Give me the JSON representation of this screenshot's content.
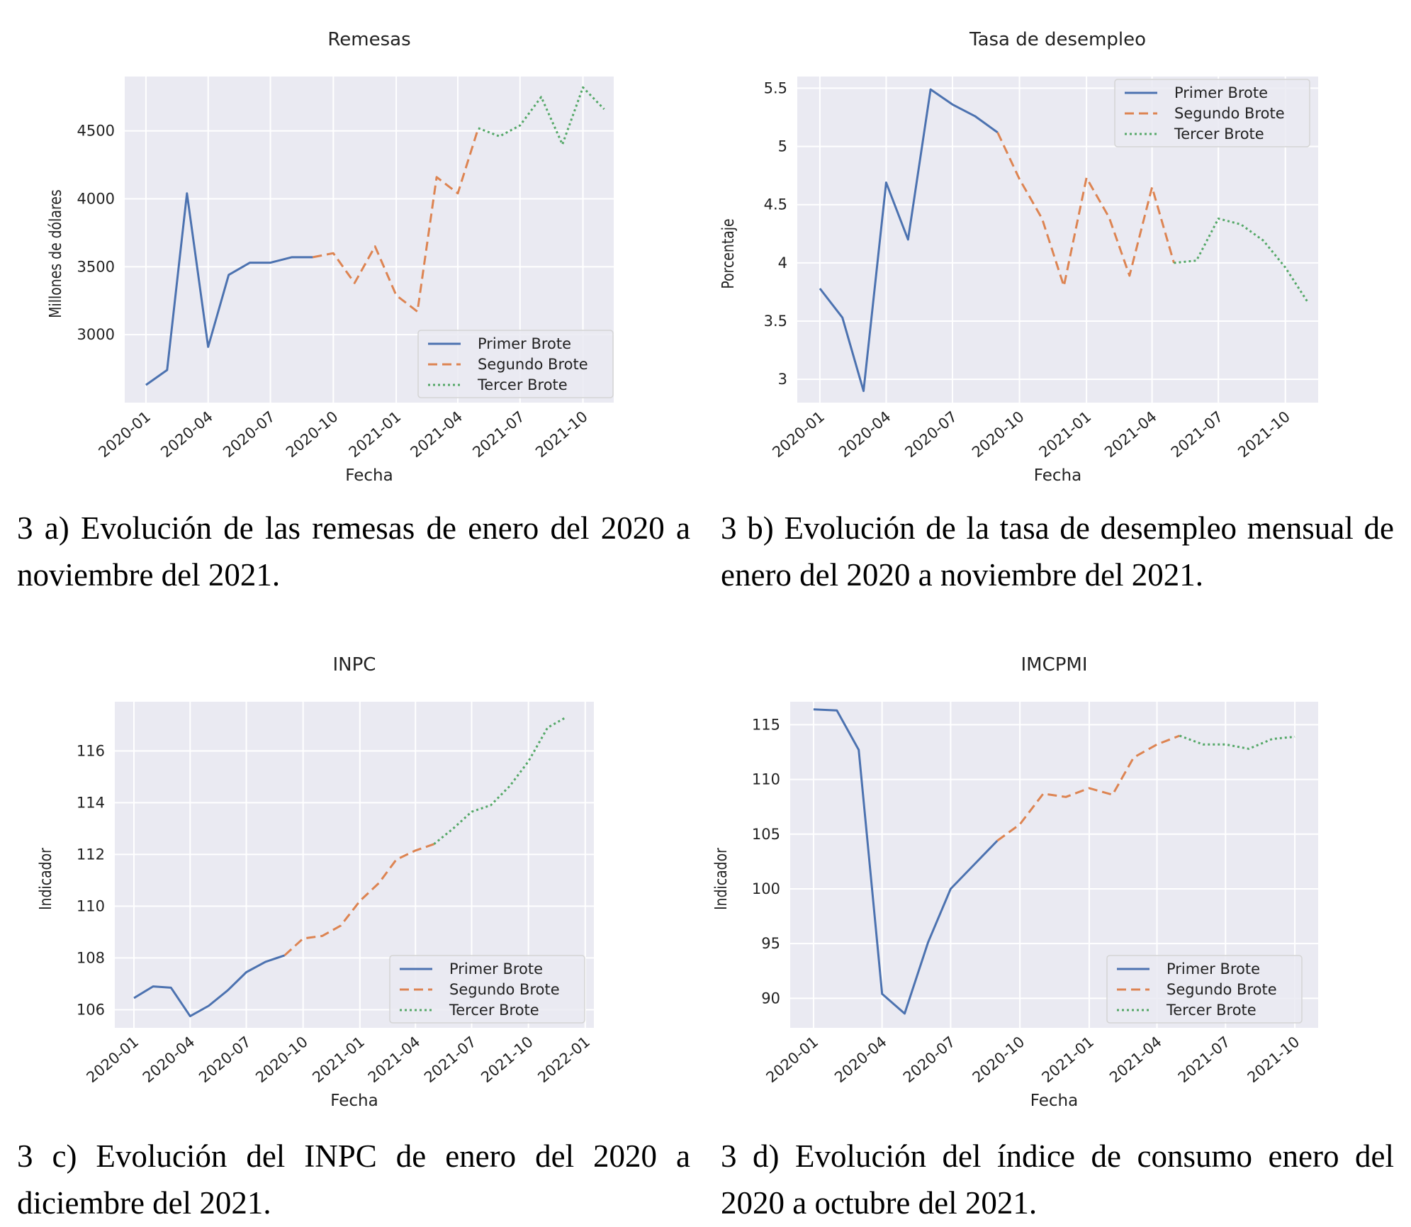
{
  "chart_data": [
    {
      "id": "remesas",
      "type": "line",
      "title": "Remesas",
      "xlabel": "Fecha",
      "ylabel": "Millones de dólares",
      "x_ticks": [
        "2020-01",
        "2020-04",
        "2020-07",
        "2020-10",
        "2021-01",
        "2021-04",
        "2021-07",
        "2021-10"
      ],
      "y_ticks": [
        3000,
        3500,
        4000,
        4500
      ],
      "ylim": [
        2500,
        4900
      ],
      "xlim": [
        "2019-12-01",
        "2021-11-15"
      ],
      "grid": true,
      "legend": "lower-right",
      "series": [
        {
          "name": "Primer Brote",
          "style": "solid",
          "color": "#4c72b0",
          "x": [
            "2020-01",
            "2020-02",
            "2020-03",
            "2020-04",
            "2020-05",
            "2020-06",
            "2020-07",
            "2020-08",
            "2020-09"
          ],
          "values": [
            2630,
            2740,
            4040,
            2910,
            3440,
            3530,
            3530,
            3570,
            3570
          ]
        },
        {
          "name": "Segundo Brote",
          "style": "dashed",
          "color": "#dd8452",
          "x": [
            "2020-09",
            "2020-10",
            "2020-11",
            "2020-12",
            "2021-01",
            "2021-02",
            "2021-03",
            "2021-04",
            "2021-05"
          ],
          "values": [
            3570,
            3600,
            3380,
            3650,
            3290,
            3170,
            4160,
            4040,
            4520
          ]
        },
        {
          "name": "Tercer Brote",
          "style": "dotted",
          "color": "#55a868",
          "x": [
            "2021-05",
            "2021-06",
            "2021-07",
            "2021-08",
            "2021-09",
            "2021-10",
            "2021-11"
          ],
          "values": [
            4520,
            4460,
            4540,
            4750,
            4400,
            4820,
            4660
          ]
        }
      ]
    },
    {
      "id": "desempleo",
      "type": "line",
      "title": "Tasa de desempleo",
      "xlabel": "Fecha",
      "ylabel": "Porcentaje",
      "x_ticks": [
        "2020-01",
        "2020-04",
        "2020-07",
        "2020-10",
        "2021-01",
        "2021-04",
        "2021-07",
        "2021-10"
      ],
      "y_ticks": [
        3.0,
        3.5,
        4.0,
        4.5,
        5.0,
        5.5
      ],
      "ylim": [
        2.8,
        5.6
      ],
      "xlim": [
        "2019-12-01",
        "2021-11-15"
      ],
      "grid": true,
      "legend": "top-right",
      "series": [
        {
          "name": "Primer Brote",
          "style": "solid",
          "color": "#4c72b0",
          "x": [
            "2020-01",
            "2020-02",
            "2020-03",
            "2020-04",
            "2020-05",
            "2020-06",
            "2020-07",
            "2020-08",
            "2020-09"
          ],
          "values": [
            3.78,
            3.53,
            2.9,
            4.69,
            4.2,
            5.49,
            5.36,
            5.26,
            5.12
          ]
        },
        {
          "name": "Segundo Brote",
          "style": "dashed",
          "color": "#dd8452",
          "x": [
            "2020-09",
            "2020-10",
            "2020-11",
            "2020-12",
            "2021-01",
            "2021-02",
            "2021-03",
            "2021-04",
            "2021-05"
          ],
          "values": [
            5.12,
            4.72,
            4.38,
            3.8,
            4.73,
            4.39,
            3.89,
            4.65,
            4.0
          ]
        },
        {
          "name": "Tercer Brote",
          "style": "dotted",
          "color": "#55a868",
          "x": [
            "2021-05",
            "2021-06",
            "2021-07",
            "2021-08",
            "2021-09",
            "2021-10",
            "2021-11"
          ],
          "values": [
            4.0,
            4.02,
            4.38,
            4.33,
            4.19,
            3.96,
            3.66
          ]
        }
      ]
    },
    {
      "id": "inpc",
      "type": "line",
      "title": "INPC",
      "xlabel": "Fecha",
      "ylabel": "Indicador",
      "x_ticks": [
        "2020-01",
        "2020-04",
        "2020-07",
        "2020-10",
        "2021-01",
        "2021-04",
        "2021-07",
        "2021-10",
        "2022-01"
      ],
      "y_ticks": [
        106,
        108,
        110,
        112,
        114,
        116
      ],
      "ylim": [
        105.3,
        117.9
      ],
      "xlim": [
        "2019-12-01",
        "2022-01-15"
      ],
      "grid": true,
      "legend": "lower-right",
      "series": [
        {
          "name": "Primer Brote",
          "style": "solid",
          "color": "#4c72b0",
          "x": [
            "2020-01",
            "2020-02",
            "2020-03",
            "2020-04",
            "2020-05",
            "2020-06",
            "2020-07",
            "2020-08",
            "2020-09"
          ],
          "values": [
            106.45,
            106.9,
            106.85,
            105.75,
            106.15,
            106.75,
            107.45,
            107.85,
            108.1
          ]
        },
        {
          "name": "Segundo Brote",
          "style": "dashed",
          "color": "#dd8452",
          "x": [
            "2020-09",
            "2020-10",
            "2020-11",
            "2020-12",
            "2021-01",
            "2021-02",
            "2021-03",
            "2021-04",
            "2021-05"
          ],
          "values": [
            108.1,
            108.75,
            108.85,
            109.25,
            110.2,
            110.9,
            111.8,
            112.15,
            112.4
          ]
        },
        {
          "name": "Tercer Brote",
          "style": "dotted",
          "color": "#55a868",
          "x": [
            "2021-05",
            "2021-06",
            "2021-07",
            "2021-08",
            "2021-09",
            "2021-10",
            "2021-11",
            "2021-12"
          ],
          "values": [
            112.4,
            113.0,
            113.65,
            113.9,
            114.65,
            115.6,
            116.9,
            117.3
          ]
        }
      ]
    },
    {
      "id": "imcpmi",
      "type": "line",
      "title": "IMCPMI",
      "xlabel": "Fecha",
      "ylabel": "Indicador",
      "x_ticks": [
        "2020-01",
        "2020-04",
        "2020-07",
        "2020-10",
        "2021-01",
        "2021-04",
        "2021-07",
        "2021-10"
      ],
      "y_ticks": [
        90,
        95,
        100,
        105,
        110,
        115
      ],
      "ylim": [
        87.3,
        117.1
      ],
      "xlim": [
        "2019-12-01",
        "2021-11-01"
      ],
      "grid": true,
      "legend": "lower-right",
      "series": [
        {
          "name": "Primer Brote",
          "style": "solid",
          "color": "#4c72b0",
          "x": [
            "2020-01",
            "2020-02",
            "2020-03",
            "2020-04",
            "2020-05",
            "2020-06",
            "2020-07",
            "2020-08",
            "2020-09"
          ],
          "values": [
            116.4,
            116.3,
            112.7,
            90.4,
            88.6,
            95.1,
            100.0,
            102.2,
            104.4
          ]
        },
        {
          "name": "Segundo Brote",
          "style": "dashed",
          "color": "#dd8452",
          "x": [
            "2020-09",
            "2020-10",
            "2020-11",
            "2020-12",
            "2021-01",
            "2021-02",
            "2021-03",
            "2021-04",
            "2021-05"
          ],
          "values": [
            104.4,
            105.9,
            108.7,
            108.4,
            109.2,
            108.6,
            112.0,
            113.2,
            114.0
          ]
        },
        {
          "name": "Tercer Brote",
          "style": "dotted",
          "color": "#55a868",
          "x": [
            "2021-05",
            "2021-06",
            "2021-07",
            "2021-08",
            "2021-09",
            "2021-10"
          ],
          "values": [
            114.0,
            113.2,
            113.2,
            112.8,
            113.7,
            113.9
          ]
        }
      ]
    }
  ],
  "captions": {
    "a": "3 a) Evolución de las remesas de enero del 2020 a noviembre del 2021.",
    "b": "3 b) Evolución de la tasa de desempleo mensual de enero del 2020 a noviembre del 2021.",
    "c": "3 c) Evolución del INPC de enero del 2020 a diciembre del 2021.",
    "d": "3 d) Evolución del índice de consumo enero del 2020 a octubre del 2021."
  },
  "colors": {
    "plot_background": "#eaeaf2",
    "grid": "#ffffff",
    "primer_brote": "#4c72b0",
    "segundo_brote": "#dd8452",
    "tercer_brote": "#55a868"
  }
}
